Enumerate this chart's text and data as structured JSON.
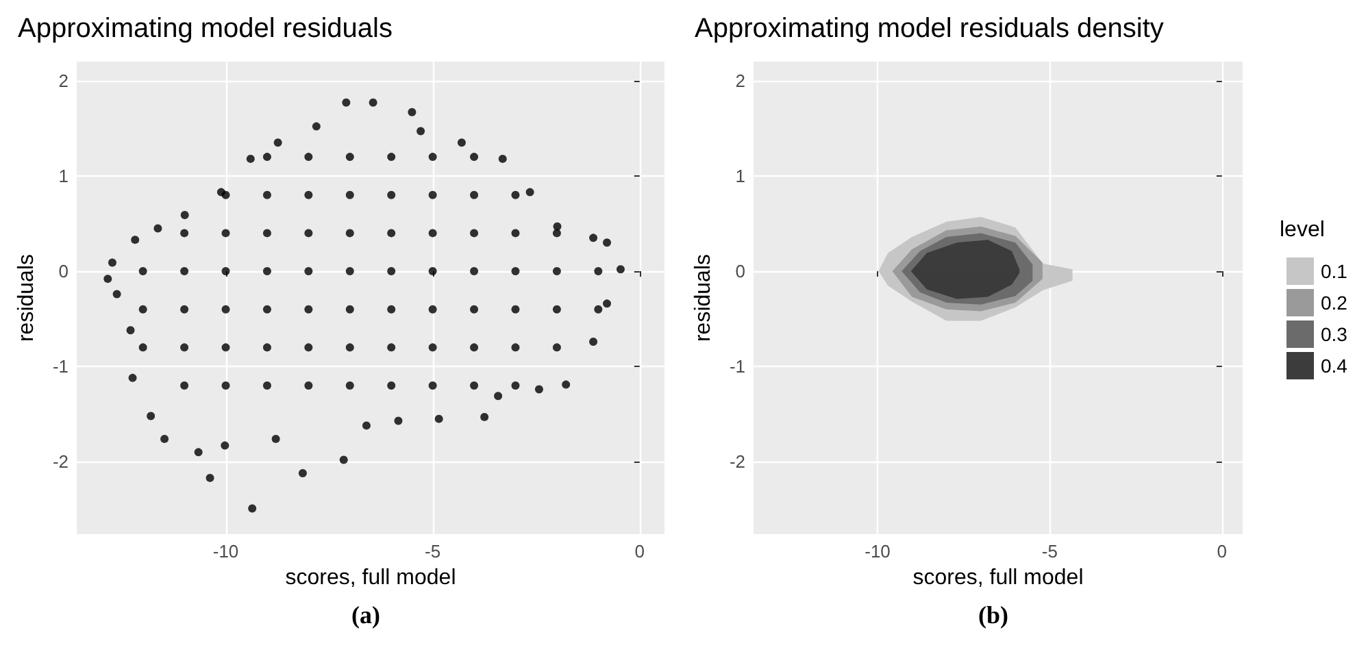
{
  "chart_data": [
    {
      "type": "scatter",
      "title": "Approximating model residuals",
      "xlabel": "scores, full model",
      "ylabel": "residuals",
      "annotations": [
        "(a)"
      ],
      "xlim": [
        -13.6,
        0.6
      ],
      "ylim": [
        -2.76,
        2.2
      ],
      "xticks": [
        -10,
        -5,
        0
      ],
      "yticks": [
        -2,
        -1,
        0,
        1,
        2
      ],
      "grid": true,
      "marker": "circle",
      "series": [
        {
          "color": "#000000",
          "x": [
            -12.85,
            -12.74,
            -12.19,
            -11.64,
            -10.99,
            -10.11,
            -9.4,
            -8.74,
            -7.81,
            -7.09,
            -6.44,
            -5.5,
            -5.29,
            -4.3,
            -3.31,
            -2.65,
            -1.99,
            -1.12,
            -0.79,
            -0.46,
            -0.79,
            -1.12,
            -1.78,
            -2.43,
            -3.42,
            -3.75,
            -4.85,
            -5.83,
            -6.6,
            -7.15,
            -8.14,
            -8.79,
            -9.36,
            -10.02,
            -10.38,
            -10.66,
            -11.48,
            -11.81,
            -12.25,
            -12.3,
            -12.63,
            -9,
            -8,
            -7,
            -6,
            -5,
            -4,
            -10,
            -9,
            -8,
            -7,
            -6,
            -5,
            -4,
            -3,
            -11,
            -10,
            -9,
            -8,
            -7,
            -6,
            -5,
            -4,
            -3,
            -2,
            -12,
            -11,
            -10,
            -9,
            -8,
            -7,
            -6,
            -5,
            -4,
            -3,
            -2,
            -1,
            -12,
            -11,
            -10,
            -9,
            -8,
            -7,
            -6,
            -5,
            -4,
            -3,
            -2,
            -1,
            -12,
            -11,
            -10,
            -9,
            -8,
            -7,
            -6,
            -5,
            -4,
            -3,
            -2,
            -11,
            -10,
            -9,
            -8,
            -7,
            -6,
            -5,
            -4,
            -3
          ],
          "values": [
            -0.08,
            0.09,
            0.33,
            0.45,
            0.59,
            0.83,
            1.18,
            1.35,
            1.52,
            1.77,
            1.77,
            1.67,
            1.47,
            1.35,
            1.18,
            0.83,
            0.47,
            0.35,
            0.3,
            0.02,
            -0.34,
            -0.74,
            -1.19,
            -1.24,
            -1.31,
            -1.53,
            -1.55,
            -1.57,
            -1.62,
            -1.98,
            -2.12,
            -1.76,
            -2.49,
            -1.83,
            -2.17,
            -1.9,
            -1.76,
            -1.52,
            -1.12,
            -0.62,
            -0.24,
            1.2,
            1.2,
            1.2,
            1.2,
            1.2,
            1.2,
            0.8,
            0.8,
            0.8,
            0.8,
            0.8,
            0.8,
            0.8,
            0.8,
            0.4,
            0.4,
            0.4,
            0.4,
            0.4,
            0.4,
            0.4,
            0.4,
            0.4,
            0.4,
            0,
            0,
            0,
            0,
            0,
            0,
            0,
            0,
            0,
            0,
            0,
            0,
            -0.4,
            -0.4,
            -0.4,
            -0.4,
            -0.4,
            -0.4,
            -0.4,
            -0.4,
            -0.4,
            -0.4,
            -0.4,
            -0.4,
            -0.8,
            -0.8,
            -0.8,
            -0.8,
            -0.8,
            -0.8,
            -0.8,
            -0.8,
            -0.8,
            -0.8,
            -0.8,
            -1.2,
            -1.2,
            -1.2,
            -1.2,
            -1.2,
            -1.2,
            -1.2,
            -1.2,
            -1.2
          ]
        }
      ]
    },
    {
      "type": "area",
      "title": "Approximating model residuals density",
      "xlabel": "scores, full model",
      "ylabel": "residuals",
      "annotations": [
        "(b)"
      ],
      "legend_title": "level",
      "legend": "right",
      "xlim": [
        -13.6,
        0.6
      ],
      "ylim": [
        -2.76,
        2.2
      ],
      "xticks": [
        -10,
        -5,
        0
      ],
      "yticks": [
        -2,
        -1,
        0,
        1,
        2
      ],
      "grid": true,
      "series": [
        {
          "name": "0.1",
          "color": "#c6c6c6",
          "x": [
            -9.97,
            -9.7,
            -9,
            -8,
            -7,
            -6,
            -5.2,
            -4.34
          ],
          "values": [
            0,
            0.19,
            0.36,
            0.52,
            0.57,
            0.46,
            0.08,
            0.02
          ]
        },
        {
          "color": "#c6c6c6",
          "x": [
            -9.97,
            -9.7,
            -9,
            -8,
            -7,
            -6,
            -5.2,
            -4.34
          ],
          "values": [
            0,
            -0.15,
            -0.32,
            -0.52,
            -0.52,
            -0.38,
            -0.2,
            -0.1
          ]
        },
        {
          "name": "0.2",
          "color": "#9a9a9a",
          "x": [
            -9.57,
            -9,
            -8,
            -7,
            -6,
            -5.21
          ],
          "values": [
            0,
            0.23,
            0.43,
            0.47,
            0.37,
            0.09
          ]
        },
        {
          "color": "#9a9a9a",
          "x": [
            -9.57,
            -9,
            -8,
            -7,
            -6,
            -5.21
          ],
          "values": [
            0,
            -0.27,
            -0.4,
            -0.42,
            -0.33,
            -0.08
          ]
        },
        {
          "name": "0.3",
          "color": "#6b6b6b",
          "x": [
            -9.3,
            -8.77,
            -8,
            -7,
            -6,
            -5.5
          ],
          "values": [
            0,
            0.21,
            0.36,
            0.4,
            0.3,
            0.07
          ]
        },
        {
          "color": "#6b6b6b",
          "x": [
            -9.3,
            -8.77,
            -8,
            -7,
            -6,
            -5.5
          ],
          "values": [
            0,
            -0.22,
            -0.33,
            -0.35,
            -0.26,
            -0.1
          ]
        },
        {
          "name": "0.4",
          "color": "#3c3c3c",
          "x": [
            -9.03,
            -8.57,
            -7.7,
            -6.8,
            -6.1,
            -5.88
          ],
          "values": [
            0,
            0.19,
            0.3,
            0.33,
            0.21,
            0.02
          ]
        },
        {
          "color": "#3b3b3b",
          "x": [
            -9.03,
            -8.57,
            -7.7,
            -6.8,
            -6.1,
            -5.88
          ],
          "values": [
            0,
            -0.19,
            -0.29,
            -0.27,
            -0.14,
            -0.02
          ]
        }
      ]
    }
  ]
}
